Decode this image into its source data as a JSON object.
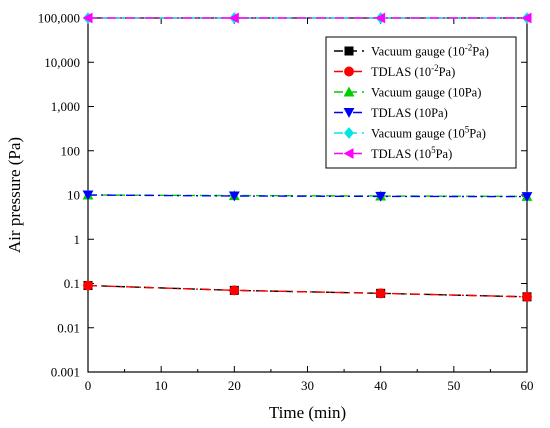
{
  "chart_data": {
    "type": "line",
    "xlabel": "Time (min)",
    "ylabel": "Air pressure (Pa)",
    "x": [
      0,
      20,
      40,
      60
    ],
    "xlim": [
      0,
      60
    ],
    "xticks": [
      "0",
      "10",
      "20",
      "30",
      "40",
      "50",
      "60"
    ],
    "ylim": [
      0.001,
      100000
    ],
    "yscale": "log",
    "yticks": [
      "0.001",
      "0.01",
      "0.1",
      "1",
      "10",
      "100",
      "1,000",
      "10,000",
      "100,000"
    ],
    "grid": false,
    "legend_position": "top-right",
    "series": [
      {
        "name": "Vacuum gauge (10",
        "sup": "-2",
        "tail": "Pa)",
        "values": [
          0.09,
          0.07,
          0.06,
          0.05
        ],
        "color": "#000000",
        "marker": "square",
        "dash": "dashed"
      },
      {
        "name": "TDLAS (10",
        "sup": "-2",
        "tail": "Pa)",
        "values": [
          0.09,
          0.07,
          0.06,
          0.05
        ],
        "color": "#ff0000",
        "marker": "circle",
        "dash": "dashdot"
      },
      {
        "name": "Vacuum gauge (10Pa)",
        "sup": "",
        "tail": "",
        "values": [
          10,
          9.7,
          9.5,
          9.3
        ],
        "color": "#00cc00",
        "marker": "triangle-up",
        "dash": "dashed"
      },
      {
        "name": "TDLAS (10Pa)",
        "sup": "",
        "tail": "",
        "values": [
          10,
          9.5,
          9.3,
          9.2
        ],
        "color": "#0000ff",
        "marker": "triangle-down",
        "dash": "dashdot"
      },
      {
        "name": "Vacuum gauge (10",
        "sup": "5",
        "tail": "Pa)",
        "values": [
          100000,
          100000,
          100000,
          100000
        ],
        "color": "#00e5e5",
        "marker": "diamond",
        "dash": "dashed"
      },
      {
        "name": "TDLAS (10",
        "sup": "5",
        "tail": "Pa)",
        "values": [
          100000,
          100000,
          100000,
          100000
        ],
        "color": "#ff00ff",
        "marker": "triangle-left",
        "dash": "dashdot"
      }
    ]
  }
}
